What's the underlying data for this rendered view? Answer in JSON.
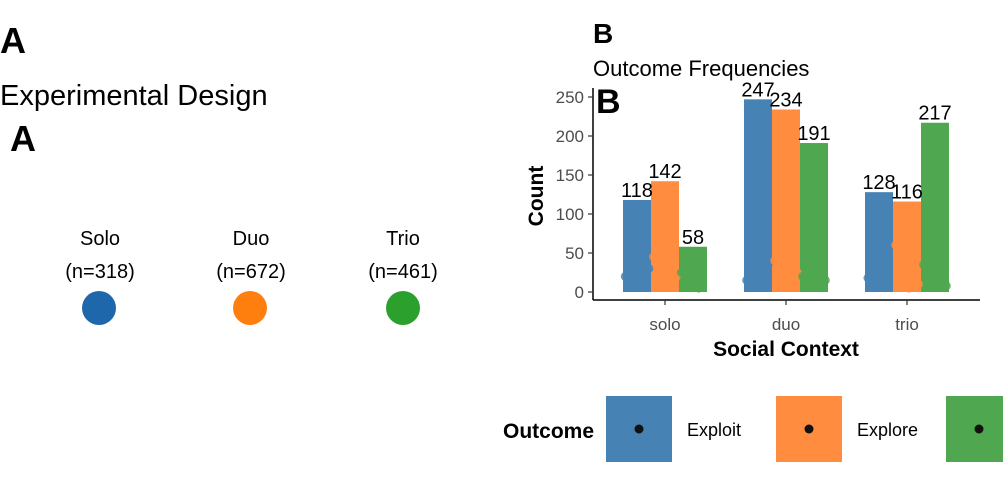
{
  "panel_a": {
    "letter_outer": "A",
    "title": "Experimental Design",
    "letter_inner": "A",
    "conditions": [
      {
        "name": "Solo",
        "n_label": "(n=318)",
        "color": "#1f67ab"
      },
      {
        "name": "Duo",
        "n_label": "(n=672)",
        "color": "#ff7f0e"
      },
      {
        "name": "Trio",
        "n_label": "(n=461)",
        "color": "#2ca02c"
      }
    ]
  },
  "panel_b": {
    "letter_outer": "B",
    "letter_inner": "B"
  },
  "chart_data": {
    "type": "bar",
    "title": "Outcome Frequencies",
    "xlabel": "Social Context",
    "ylabel": "Count",
    "categories": [
      "solo",
      "duo",
      "trio"
    ],
    "ylim": [
      0,
      260
    ],
    "yticks": [
      0,
      50,
      100,
      150,
      200,
      250
    ],
    "grid": false,
    "series": [
      {
        "name": "Exploit",
        "color": "#4682b4",
        "values": [
          118,
          247,
          128
        ],
        "labels": [
          "118",
          "247",
          "128"
        ]
      },
      {
        "name": "Explore",
        "color": "#ff8c3f",
        "values": [
          142,
          234,
          116
        ],
        "labels": [
          "142",
          "234",
          "116"
        ]
      },
      {
        "name": "",
        "color": "#4fa84f",
        "values": [
          58,
          191,
          217
        ],
        "labels": [
          "58",
          "191",
          "217"
        ]
      }
    ],
    "points": [
      [
        [
          20,
          25,
          35,
          22,
          18,
          8,
          15,
          30
        ],
        [
          45,
          55,
          40,
          30,
          50,
          20
        ],
        [
          25,
          30,
          20,
          10,
          15,
          28,
          5
        ]
      ],
      [
        [
          15,
          20,
          30,
          25,
          18,
          38
        ],
        [
          40,
          42,
          35,
          48,
          52,
          25
        ],
        [
          20,
          25,
          18,
          10,
          22,
          15
        ]
      ],
      [
        [
          18,
          22,
          25,
          10,
          15
        ],
        [
          60,
          70,
          50,
          45,
          5,
          10
        ],
        [
          35,
          40,
          75,
          30,
          28,
          8
        ]
      ]
    ],
    "legend": {
      "title": "Outcome",
      "position": "bottom",
      "items": [
        "Exploit",
        "Explore",
        ""
      ]
    }
  }
}
